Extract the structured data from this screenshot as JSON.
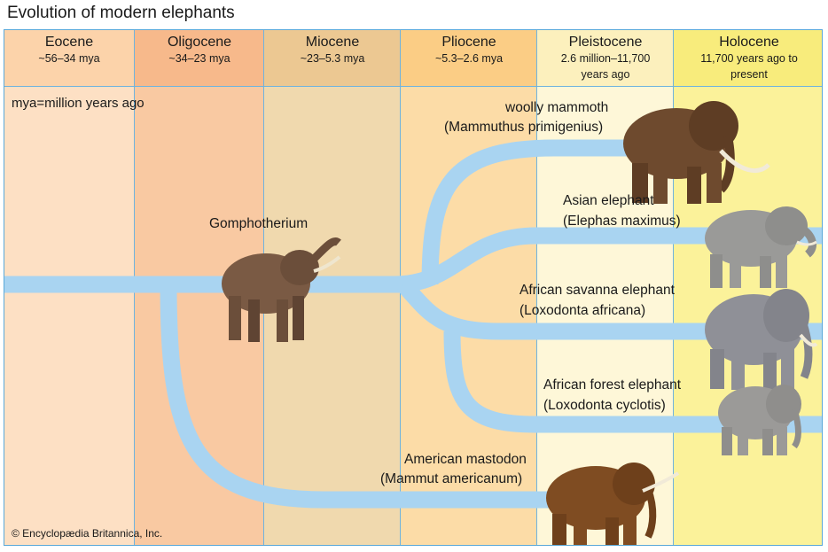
{
  "title": "Evolution of modern elephants",
  "epochs": [
    {
      "name": "Eocene",
      "range": "~56–34 mya",
      "bg": "#fde0c4",
      "hbg": "#fcd3aa"
    },
    {
      "name": "Oligocene",
      "range": "~34–23 mya",
      "bg": "#f9c9a2",
      "hbg": "#f7b98b"
    },
    {
      "name": "Miocene",
      "range": "~23–5.3 mya",
      "bg": "#f0d9ae",
      "hbg": "#ecc892"
    },
    {
      "name": "Pliocene",
      "range": "~5.3–2.6 mya",
      "bg": "#fcdca7",
      "hbg": "#fbcd85"
    },
    {
      "name": "Pleistocene",
      "range": "2.6 million–11,700 years ago",
      "bg": "#fef7d8",
      "hbg": "#fcf0bd"
    },
    {
      "name": "Holocene",
      "range": "11,700 years ago to present",
      "bg": "#fbf29a",
      "hbg": "#f8ec7c"
    }
  ],
  "note": "mya=million years ago",
  "credit": "© Encyclopædia Britannica, Inc.",
  "colors": {
    "branch": "#a9d4f1",
    "border": "#5aa8d8"
  },
  "labels": {
    "gomphotherium": "Gomphotherium",
    "mammoth_common": "woolly mammoth",
    "mammoth_sci": "(Mammuthus primigenius)",
    "asian_common": "Asian elephant",
    "asian_sci": "(Elephas maximus)",
    "savanna_common": "African savanna elephant",
    "savanna_sci": "(Loxodonta africana)",
    "forest_common": "African forest elephant",
    "forest_sci": "(Loxodonta cyclotis)",
    "mastodon_common": "American mastodon",
    "mastodon_sci": "(Mammut americanum)"
  }
}
